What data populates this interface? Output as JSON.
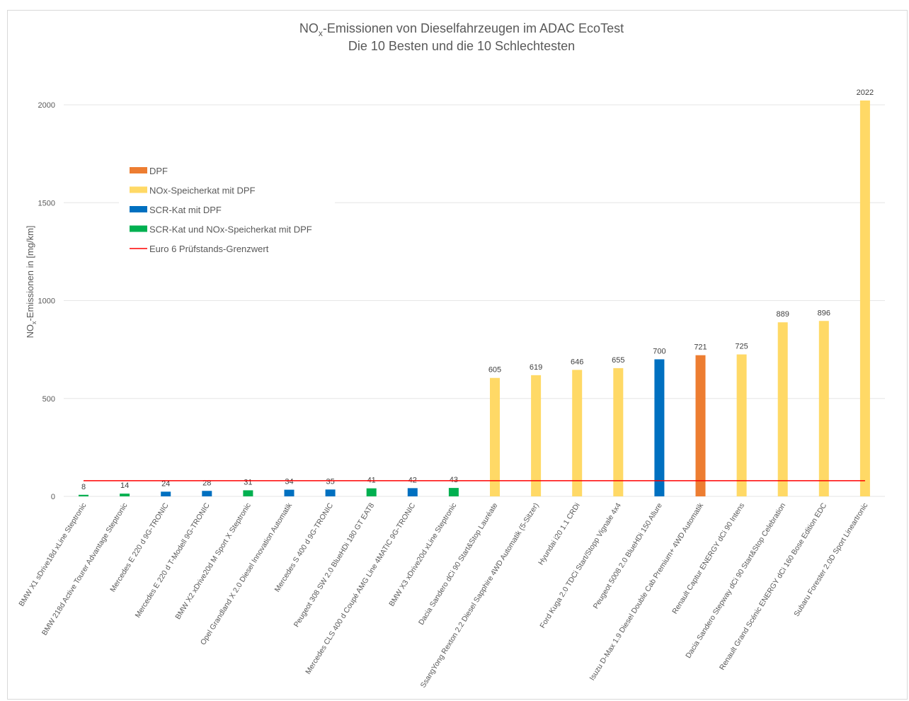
{
  "chart_data": {
    "type": "bar",
    "title_main": "NO",
    "title_sub": "x",
    "title_rest": "-Emissionen von Dieselfahrzeugen im ADAC EcoTest",
    "subtitle": "Die 10 Besten und die 10 Schlechtesten",
    "ylabel_main": "NO",
    "ylabel_sub": "x",
    "ylabel_rest": "-Emissionen in [mg/km]",
    "ylim": [
      0,
      2000
    ],
    "yticks": [
      0,
      500,
      1000,
      1500,
      2000
    ],
    "grid": true,
    "categories": [
      "BMW X1 sDrive18d xLine Steptronic",
      "BMW 218d Active Tourer Advantage Steptronic",
      "Mercedes E 220 d 9G-TRONIC",
      "Mercedes E 220 d T-Modell 9G-TRONIC",
      "BMW X2 xDrive20d M Sport X Steptronic",
      "Opel Grandland X 2.0 Diesel Innovation Automatik",
      "Mercedes S 400 d 9G-TRONIC",
      "Peugeot 308 SW 2.0 BlueHDi 180 GT EAT8",
      "Mercedes CLS 400 d Coupé AMG Line 4MATIC 9G-TRONIC",
      "BMW X3 xDrive20d xLine Steptronic",
      "Dacia Sandero dCi 90 Start&Stop Lauréate",
      "SsangYong Rexton 2.2 Diesel Sapphire 4WD Automatik (5-Sitzer)",
      "Hyundai i20 1.1 CRDi",
      "Ford Kuga 2.0 TDCi Start/Stopp Vignale 4x4",
      "Peugeot 5008 2.0 BlueHDi 150 Allure",
      "Isuzu D-Max 1.9 Diesel Double Cab Premium+ 4WD Automatik",
      "Renault Captur ENERGY dCi 90 Intens",
      "Dacia Sandero Stepway dCi 90 Start&Stop Celebration",
      "Renault Grand Scénic ENERGY dCi 160 Bose Edition EDC",
      "Subaru Forester 2.0D Sport Lineartronic"
    ],
    "values": [
      8,
      14,
      24,
      28,
      31,
      34,
      35,
      41,
      42,
      43,
      605,
      619,
      646,
      655,
      700,
      721,
      725,
      889,
      896,
      2022
    ],
    "bar_type_index": [
      3,
      3,
      2,
      2,
      3,
      2,
      2,
      3,
      2,
      3,
      1,
      1,
      1,
      1,
      2,
      0,
      1,
      1,
      1,
      1
    ],
    "legend": [
      {
        "name": "DPF",
        "color": "#ED7D31",
        "kind": "bar"
      },
      {
        "name": "NOx-Speicherkat mit DPF",
        "color": "#FFD966",
        "kind": "bar"
      },
      {
        "name": "SCR-Kat mit DPF",
        "color": "#0070C0",
        "kind": "bar"
      },
      {
        "name": "SCR-Kat und NOx-Speicherkat mit DPF",
        "color": "#00B050",
        "kind": "bar"
      },
      {
        "name": "Euro 6 Prüfstands-Grenzwert",
        "color": "#FF0000",
        "kind": "line"
      }
    ],
    "legend_position": "upper-left",
    "reference_line": {
      "name": "Euro 6 Prüfstands-Grenzwert",
      "value": 80,
      "color": "#FF0000"
    }
  }
}
